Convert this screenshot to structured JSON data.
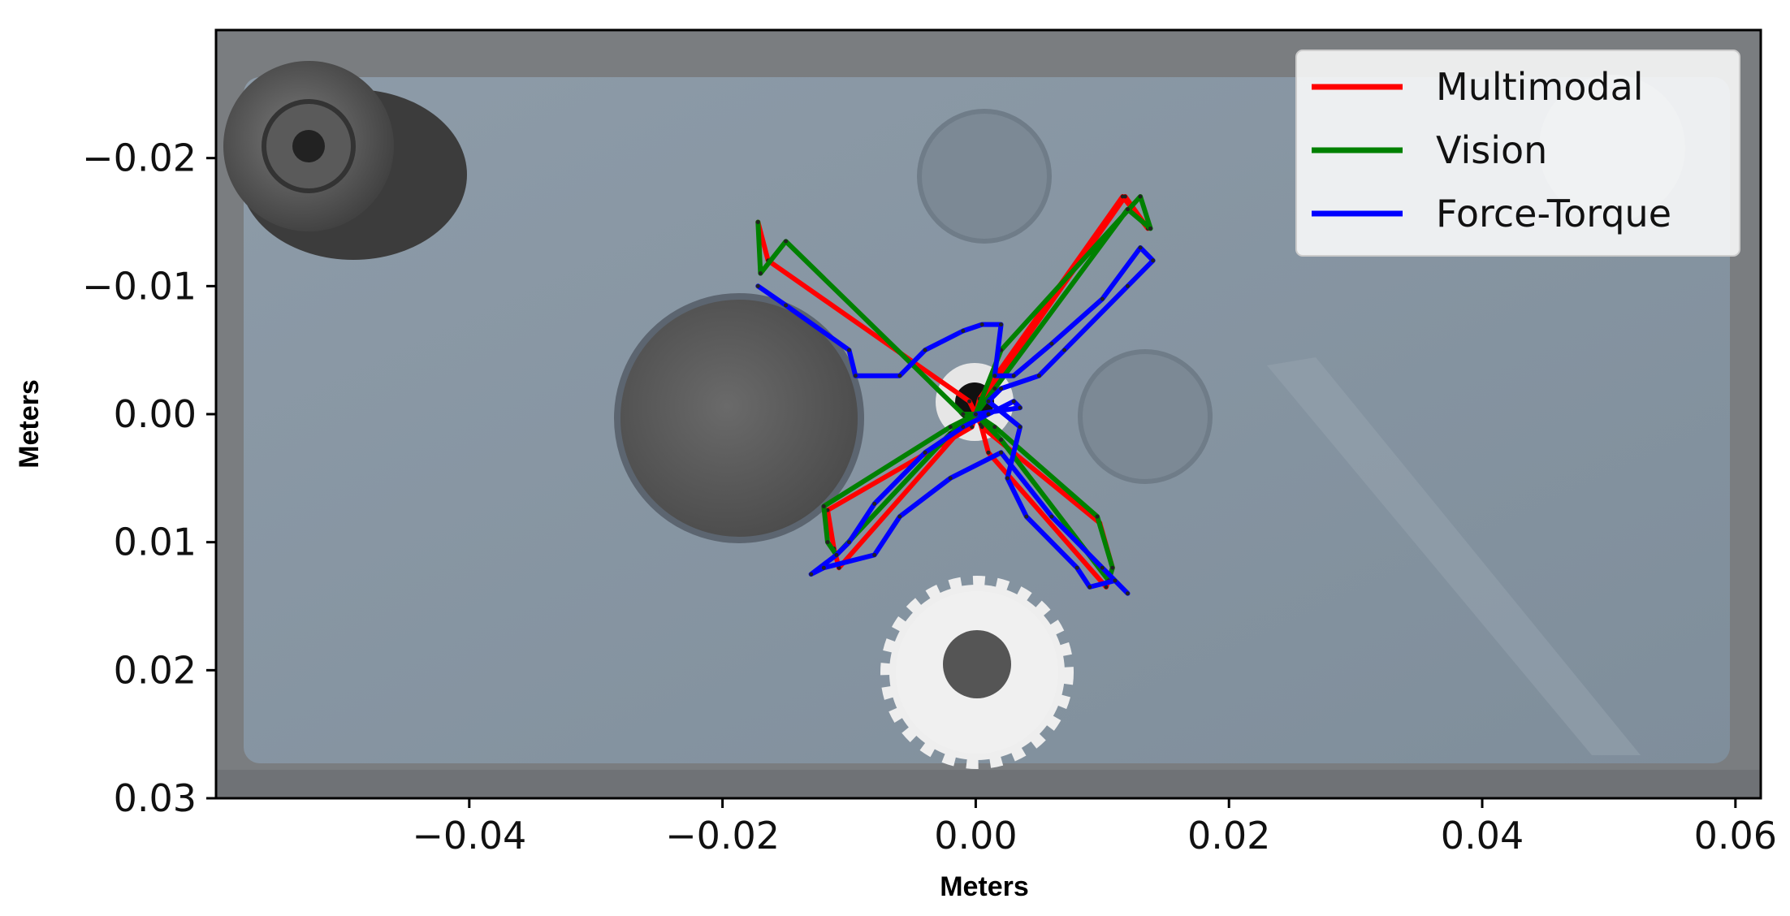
{
  "chart_data": {
    "type": "line",
    "xlabel": "Meters",
    "ylabel": "Meters",
    "xlim": [
      -0.06,
      0.062
    ],
    "ylim": [
      0.03,
      -0.03
    ],
    "y_inverted": true,
    "grid": false,
    "legend_position": "top-right",
    "background": "photo of a grey peg-insertion plate with holes, a gear and a cylindrical peg",
    "x_ticks": [
      {
        "value": -0.04,
        "label": "−0.04"
      },
      {
        "value": -0.02,
        "label": "−0.02"
      },
      {
        "value": 0.0,
        "label": "0.00"
      },
      {
        "value": 0.02,
        "label": "0.02"
      },
      {
        "value": 0.04,
        "label": "0.04"
      },
      {
        "value": 0.06,
        "label": "0.06"
      }
    ],
    "y_ticks": [
      {
        "value": -0.02,
        "label": "−0.02"
      },
      {
        "value": -0.01,
        "label": "−0.01"
      },
      {
        "value": 0.0,
        "label": "0.00"
      },
      {
        "value": 0.01,
        "label": "0.01"
      },
      {
        "value": 0.02,
        "label": "0.02"
      },
      {
        "value": 0.03,
        "label": "0.03"
      }
    ],
    "series": [
      {
        "name": "Multimodal",
        "color": "#ff0000",
        "x": [
          -0.0172,
          -0.0164,
          -0.0005,
          0.0,
          0.0005,
          0.0118,
          0.0136,
          0.0116,
          0.0003,
          0.0,
          -0.0003,
          -0.0117,
          -0.0112,
          -0.0108,
          -0.001,
          -0.0004,
          0.0,
          0.0005,
          0.0098,
          0.0108,
          0.0103,
          0.001,
          0.0004,
          0.0
        ],
        "y": [
          -0.015,
          -0.012,
          -0.001,
          0.0,
          -0.001,
          -0.017,
          -0.0145,
          -0.017,
          -0.0012,
          0.0,
          0.001,
          0.0075,
          0.0105,
          0.012,
          0.001,
          0.0003,
          0.0,
          0.001,
          0.0085,
          0.012,
          0.0135,
          0.003,
          0.0008,
          0.0
        ]
      },
      {
        "name": "Vision",
        "color": "#008000",
        "x": [
          -0.0172,
          -0.017,
          -0.015,
          -0.001,
          0.0,
          0.002,
          0.013,
          0.0138,
          0.012,
          0.0015,
          0.0,
          -0.002,
          -0.012,
          -0.0117,
          -0.011,
          -0.002,
          0.0,
          0.0015,
          0.0096,
          0.0108,
          0.0105,
          0.002,
          0.0
        ],
        "y": [
          -0.015,
          -0.011,
          -0.0135,
          0.0,
          0.0,
          -0.005,
          -0.017,
          -0.0145,
          -0.016,
          -0.002,
          0.0,
          0.001,
          0.0072,
          0.01,
          0.011,
          0.0015,
          0.0,
          0.001,
          0.008,
          0.012,
          0.013,
          0.002,
          0.0
        ]
      },
      {
        "name": "Force-Torque",
        "color": "#0000ff",
        "x": [
          -0.0172,
          -0.015,
          -0.01,
          -0.0095,
          -0.006,
          -0.004,
          -0.001,
          0.0005,
          0.002,
          0.0015,
          0.003,
          0.006,
          0.01,
          0.013,
          0.014,
          0.012,
          0.007,
          0.005,
          0.002,
          0.001,
          0.0035,
          0.0025,
          0.004,
          0.008,
          0.009,
          0.011,
          0.012,
          0.01,
          0.006,
          0.002,
          -0.002,
          -0.006,
          -0.008,
          -0.012,
          -0.013,
          -0.011,
          -0.01,
          -0.008,
          -0.004,
          -0.001,
          0.001,
          0.003,
          0.0035,
          0.0
        ],
        "y": [
          -0.01,
          -0.0085,
          -0.005,
          -0.003,
          -0.003,
          -0.005,
          -0.0065,
          -0.007,
          -0.007,
          -0.003,
          -0.003,
          -0.0055,
          -0.009,
          -0.013,
          -0.012,
          -0.01,
          -0.005,
          -0.003,
          -0.002,
          -0.001,
          0.001,
          0.005,
          0.008,
          0.012,
          0.0135,
          0.013,
          0.014,
          0.012,
          0.008,
          0.003,
          0.005,
          0.008,
          0.011,
          0.012,
          0.0125,
          0.011,
          0.01,
          0.007,
          0.003,
          0.001,
          0.0,
          -0.001,
          -0.0005,
          0.0
        ]
      }
    ]
  }
}
